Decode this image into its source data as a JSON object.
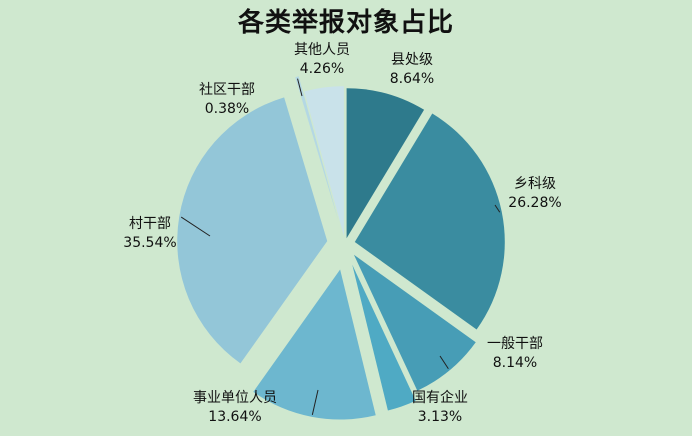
{
  "chart_data": {
    "type": "pie",
    "title": "各类举报对象占比",
    "exploded": true,
    "slices": [
      {
        "label": "县处级",
        "value": 8.64,
        "display": "8.64%",
        "color": "#2e7a8c"
      },
      {
        "label": "乡科级",
        "value": 26.28,
        "display": "26.28%",
        "color": "#3a8ca0"
      },
      {
        "label": "一般干部",
        "value": 8.14,
        "display": "8.14%",
        "color": "#479db6"
      },
      {
        "label": "国有企业",
        "value": 3.13,
        "display": "3.13%",
        "color": "#4faac4"
      },
      {
        "label": "事业单位人员",
        "value": 13.64,
        "display": "13.64%",
        "color": "#6db7cf"
      },
      {
        "label": "村干部",
        "value": 35.54,
        "display": "35.54%",
        "color": "#93c6d8"
      },
      {
        "label": "社区干部",
        "value": 0.38,
        "display": "0.38%",
        "color": "#b4d8e4"
      },
      {
        "label": "其他人员",
        "value": 4.26,
        "display": "4.26%",
        "color": "#c9e2ea"
      }
    ]
  }
}
